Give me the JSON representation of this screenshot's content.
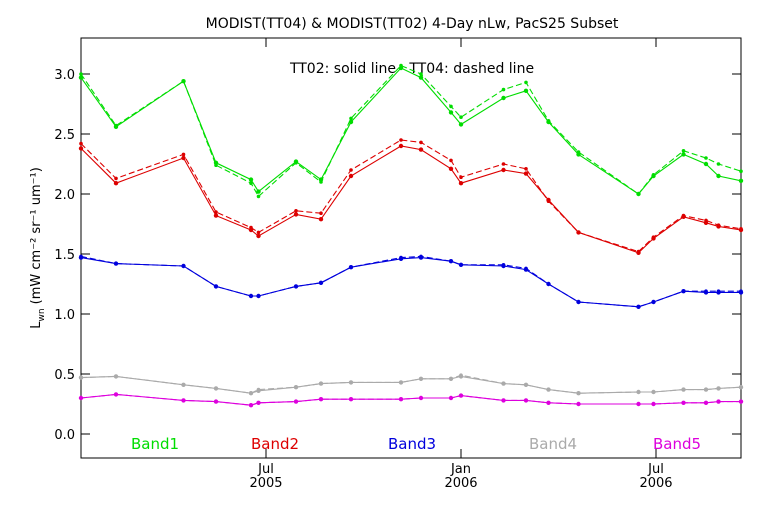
{
  "chart_data": {
    "type": "line",
    "title": "MODIST(TT04) & MODIST(TT02) 4-Day nLw, PacS25 Subset",
    "annotation": "TT02: solid line   TT04: dashed line",
    "ylabel_main": "L",
    "ylabel_sub": "wn",
    "ylabel_units": "(mW cm⁻² sr⁻¹ um⁻¹)",
    "ylim": [
      -0.2,
      3.3
    ],
    "yticks": [
      0.0,
      0.5,
      1.0,
      1.5,
      2.0,
      2.5,
      3.0
    ],
    "ytick_labels": [
      "0.0",
      "0.5",
      "1.0",
      "1.5",
      "2.0",
      "2.5",
      "3.0"
    ],
    "xlim": [
      0,
      26.4
    ],
    "xticks": [
      {
        "x": 7.4,
        "month": "Jul",
        "year": "2005"
      },
      {
        "x": 15.2,
        "month": "Jan",
        "year": "2006"
      },
      {
        "x": 23.0,
        "month": "Jul",
        "year": "2006"
      }
    ],
    "x": [
      0,
      1.4,
      4.1,
      5.4,
      6.8,
      7.1,
      8.6,
      9.6,
      10.8,
      12.8,
      13.6,
      14.8,
      15.2,
      16.9,
      17.8,
      18.7,
      19.9,
      22.3,
      22.9,
      24.1,
      25.0,
      25.5,
      26.4
    ],
    "series": [
      {
        "name": "Band1",
        "color": "#00dd00",
        "tt02": [
          2.97,
          2.56,
          2.94,
          2.26,
          2.12,
          2.02,
          2.27,
          2.12,
          2.6,
          3.05,
          2.97,
          2.68,
          2.58,
          2.8,
          2.86,
          2.6,
          2.33,
          2.0,
          2.15,
          2.33,
          2.25,
          2.15,
          2.11
        ],
        "tt04": [
          3.0,
          2.57,
          2.94,
          2.24,
          2.09,
          1.98,
          2.26,
          2.1,
          2.63,
          3.07,
          3.0,
          2.73,
          2.64,
          2.87,
          2.93,
          2.61,
          2.35,
          2.0,
          2.16,
          2.36,
          2.3,
          2.25,
          2.19
        ]
      },
      {
        "name": "Band2",
        "color": "#dd0000",
        "tt02": [
          2.38,
          2.09,
          2.3,
          1.82,
          1.7,
          1.65,
          1.83,
          1.79,
          2.15,
          2.4,
          2.37,
          2.21,
          2.09,
          2.2,
          2.17,
          1.95,
          1.68,
          1.51,
          1.63,
          1.81,
          1.76,
          1.73,
          1.7
        ],
        "tt04": [
          2.42,
          2.13,
          2.33,
          1.85,
          1.72,
          1.68,
          1.86,
          1.84,
          2.2,
          2.45,
          2.43,
          2.28,
          2.14,
          2.25,
          2.21,
          1.94,
          1.68,
          1.52,
          1.64,
          1.82,
          1.78,
          1.74,
          1.71
        ]
      },
      {
        "name": "Band3",
        "color": "#0000dd",
        "tt02": [
          1.47,
          1.42,
          1.4,
          1.23,
          1.15,
          1.15,
          1.23,
          1.26,
          1.39,
          1.46,
          1.47,
          1.44,
          1.41,
          1.4,
          1.37,
          1.25,
          1.1,
          1.06,
          1.1,
          1.19,
          1.18,
          1.18,
          1.18
        ],
        "tt04": [
          1.48,
          1.42,
          1.4,
          1.23,
          1.15,
          1.15,
          1.23,
          1.26,
          1.39,
          1.47,
          1.48,
          1.44,
          1.41,
          1.41,
          1.38,
          1.25,
          1.1,
          1.06,
          1.1,
          1.19,
          1.19,
          1.19,
          1.19
        ]
      },
      {
        "name": "Band4",
        "color": "#aaaaaa",
        "tt02": [
          0.47,
          0.48,
          0.41,
          0.38,
          0.34,
          0.36,
          0.39,
          0.42,
          0.43,
          0.43,
          0.46,
          0.46,
          0.48,
          0.42,
          0.41,
          0.37,
          0.34,
          0.35,
          0.35,
          0.37,
          0.37,
          0.38,
          0.39
        ],
        "tt04": [
          0.47,
          0.48,
          0.41,
          0.38,
          0.34,
          0.37,
          0.39,
          0.42,
          0.43,
          0.43,
          0.46,
          0.46,
          0.49,
          0.42,
          0.41,
          0.37,
          0.34,
          0.35,
          0.35,
          0.37,
          0.37,
          0.38,
          0.39
        ]
      },
      {
        "name": "Band5",
        "color": "#dd00dd",
        "tt02": [
          0.3,
          0.33,
          0.28,
          0.27,
          0.24,
          0.26,
          0.27,
          0.29,
          0.29,
          0.29,
          0.3,
          0.3,
          0.32,
          0.28,
          0.28,
          0.26,
          0.25,
          0.25,
          0.25,
          0.26,
          0.26,
          0.27,
          0.27
        ],
        "tt04": [
          0.3,
          0.33,
          0.28,
          0.27,
          0.24,
          0.26,
          0.27,
          0.29,
          0.29,
          0.29,
          0.3,
          0.3,
          0.32,
          0.28,
          0.28,
          0.26,
          0.25,
          0.25,
          0.25,
          0.26,
          0.26,
          0.27,
          0.27
        ]
      }
    ],
    "legend_placement": "bottom"
  }
}
